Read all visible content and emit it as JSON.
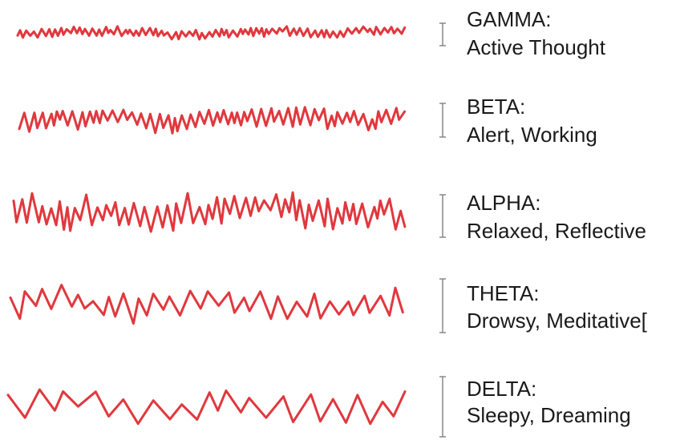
{
  "waves": [
    {
      "name": "GAMMA:",
      "state": "Active Thought"
    },
    {
      "name": "BETA:",
      "state": "Alert, Working"
    },
    {
      "name": "ALPHA:",
      "state": "Relaxed, Reflective"
    },
    {
      "name": "THETA:",
      "state": "Drowsy, Meditative["
    },
    {
      "name": "DELTA:",
      "state": "Sleepy, Dreaming"
    }
  ]
}
